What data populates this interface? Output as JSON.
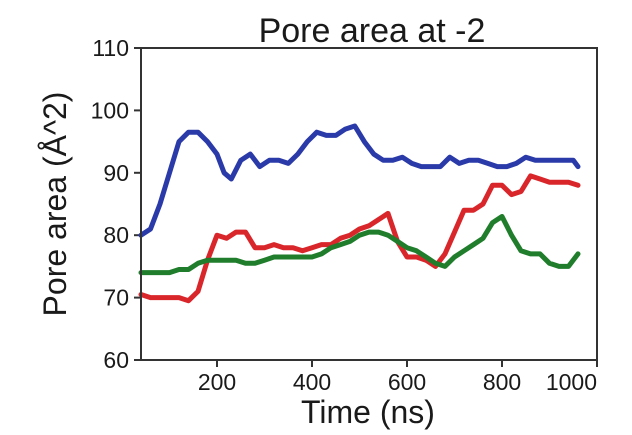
{
  "chart_data": {
    "type": "line",
    "title": "Pore area at -2",
    "xlabel": "Time (ns)",
    "ylabel": "Pore area (Å^2)",
    "xlim": [
      40,
      1000
    ],
    "ylim": [
      60,
      110
    ],
    "xticks": [
      200,
      400,
      600,
      800,
      1000
    ],
    "yticks": [
      60,
      70,
      80,
      90,
      100,
      110
    ],
    "grid": false,
    "series": [
      {
        "color": "#2a3aa8",
        "points": [
          [
            40,
            80
          ],
          [
            60,
            81
          ],
          [
            80,
            85
          ],
          [
            100,
            90
          ],
          [
            120,
            95
          ],
          [
            140,
            96.5
          ],
          [
            160,
            96.5
          ],
          [
            180,
            95
          ],
          [
            200,
            93
          ],
          [
            215,
            90
          ],
          [
            230,
            89
          ],
          [
            250,
            92
          ],
          [
            270,
            93
          ],
          [
            290,
            91
          ],
          [
            310,
            92
          ],
          [
            330,
            92
          ],
          [
            350,
            91.5
          ],
          [
            370,
            93
          ],
          [
            390,
            95
          ],
          [
            410,
            96.5
          ],
          [
            430,
            96
          ],
          [
            450,
            96
          ],
          [
            470,
            97
          ],
          [
            490,
            97.5
          ],
          [
            510,
            95
          ],
          [
            530,
            93
          ],
          [
            550,
            92
          ],
          [
            570,
            92
          ],
          [
            590,
            92.5
          ],
          [
            610,
            91.5
          ],
          [
            630,
            91
          ],
          [
            650,
            91
          ],
          [
            670,
            91
          ],
          [
            690,
            92.5
          ],
          [
            710,
            91.5
          ],
          [
            730,
            92
          ],
          [
            750,
            92
          ],
          [
            770,
            91.5
          ],
          [
            790,
            91
          ],
          [
            810,
            91
          ],
          [
            830,
            91.5
          ],
          [
            850,
            92.5
          ],
          [
            870,
            92
          ],
          [
            890,
            92
          ],
          [
            910,
            92
          ],
          [
            930,
            92
          ],
          [
            950,
            92
          ],
          [
            960,
            91
          ]
        ]
      },
      {
        "color": "#d9262b",
        "points": [
          [
            40,
            70.5
          ],
          [
            60,
            70
          ],
          [
            80,
            70
          ],
          [
            100,
            70
          ],
          [
            120,
            70
          ],
          [
            140,
            69.5
          ],
          [
            160,
            71
          ],
          [
            180,
            76
          ],
          [
            200,
            80
          ],
          [
            220,
            79.5
          ],
          [
            240,
            80.5
          ],
          [
            260,
            80.5
          ],
          [
            280,
            78
          ],
          [
            300,
            78
          ],
          [
            320,
            78.5
          ],
          [
            340,
            78
          ],
          [
            360,
            78
          ],
          [
            380,
            77.5
          ],
          [
            400,
            78
          ],
          [
            420,
            78.5
          ],
          [
            440,
            78.5
          ],
          [
            460,
            79.5
          ],
          [
            480,
            80
          ],
          [
            500,
            81
          ],
          [
            520,
            81.5
          ],
          [
            540,
            82.5
          ],
          [
            560,
            83.5
          ],
          [
            580,
            79
          ],
          [
            600,
            76.5
          ],
          [
            620,
            76.5
          ],
          [
            640,
            76
          ],
          [
            660,
            75
          ],
          [
            680,
            77
          ],
          [
            700,
            80.5
          ],
          [
            720,
            84
          ],
          [
            740,
            84
          ],
          [
            760,
            85
          ],
          [
            780,
            88
          ],
          [
            800,
            88
          ],
          [
            820,
            86.5
          ],
          [
            840,
            87
          ],
          [
            860,
            89.5
          ],
          [
            880,
            89
          ],
          [
            900,
            88.5
          ],
          [
            920,
            88.5
          ],
          [
            940,
            88.5
          ],
          [
            960,
            88
          ]
        ]
      },
      {
        "color": "#1f7d2b",
        "points": [
          [
            40,
            74
          ],
          [
            60,
            74
          ],
          [
            80,
            74
          ],
          [
            100,
            74
          ],
          [
            120,
            74.5
          ],
          [
            140,
            74.5
          ],
          [
            160,
            75.5
          ],
          [
            180,
            76
          ],
          [
            200,
            76
          ],
          [
            220,
            76
          ],
          [
            240,
            76
          ],
          [
            260,
            75.5
          ],
          [
            280,
            75.5
          ],
          [
            300,
            76
          ],
          [
            320,
            76.5
          ],
          [
            340,
            76.5
          ],
          [
            360,
            76.5
          ],
          [
            380,
            76.5
          ],
          [
            400,
            76.5
          ],
          [
            420,
            77
          ],
          [
            440,
            78
          ],
          [
            460,
            78.5
          ],
          [
            480,
            79
          ],
          [
            500,
            80
          ],
          [
            520,
            80.5
          ],
          [
            540,
            80.5
          ],
          [
            560,
            80
          ],
          [
            580,
            79
          ],
          [
            600,
            78
          ],
          [
            620,
            77.5
          ],
          [
            640,
            76.5
          ],
          [
            660,
            75.5
          ],
          [
            680,
            75
          ],
          [
            700,
            76.5
          ],
          [
            720,
            77.5
          ],
          [
            740,
            78.5
          ],
          [
            760,
            79.5
          ],
          [
            780,
            82
          ],
          [
            800,
            83
          ],
          [
            820,
            80
          ],
          [
            840,
            77.5
          ],
          [
            860,
            77
          ],
          [
            880,
            77
          ],
          [
            900,
            75.5
          ],
          [
            920,
            75
          ],
          [
            940,
            75
          ],
          [
            960,
            77
          ]
        ]
      }
    ]
  }
}
